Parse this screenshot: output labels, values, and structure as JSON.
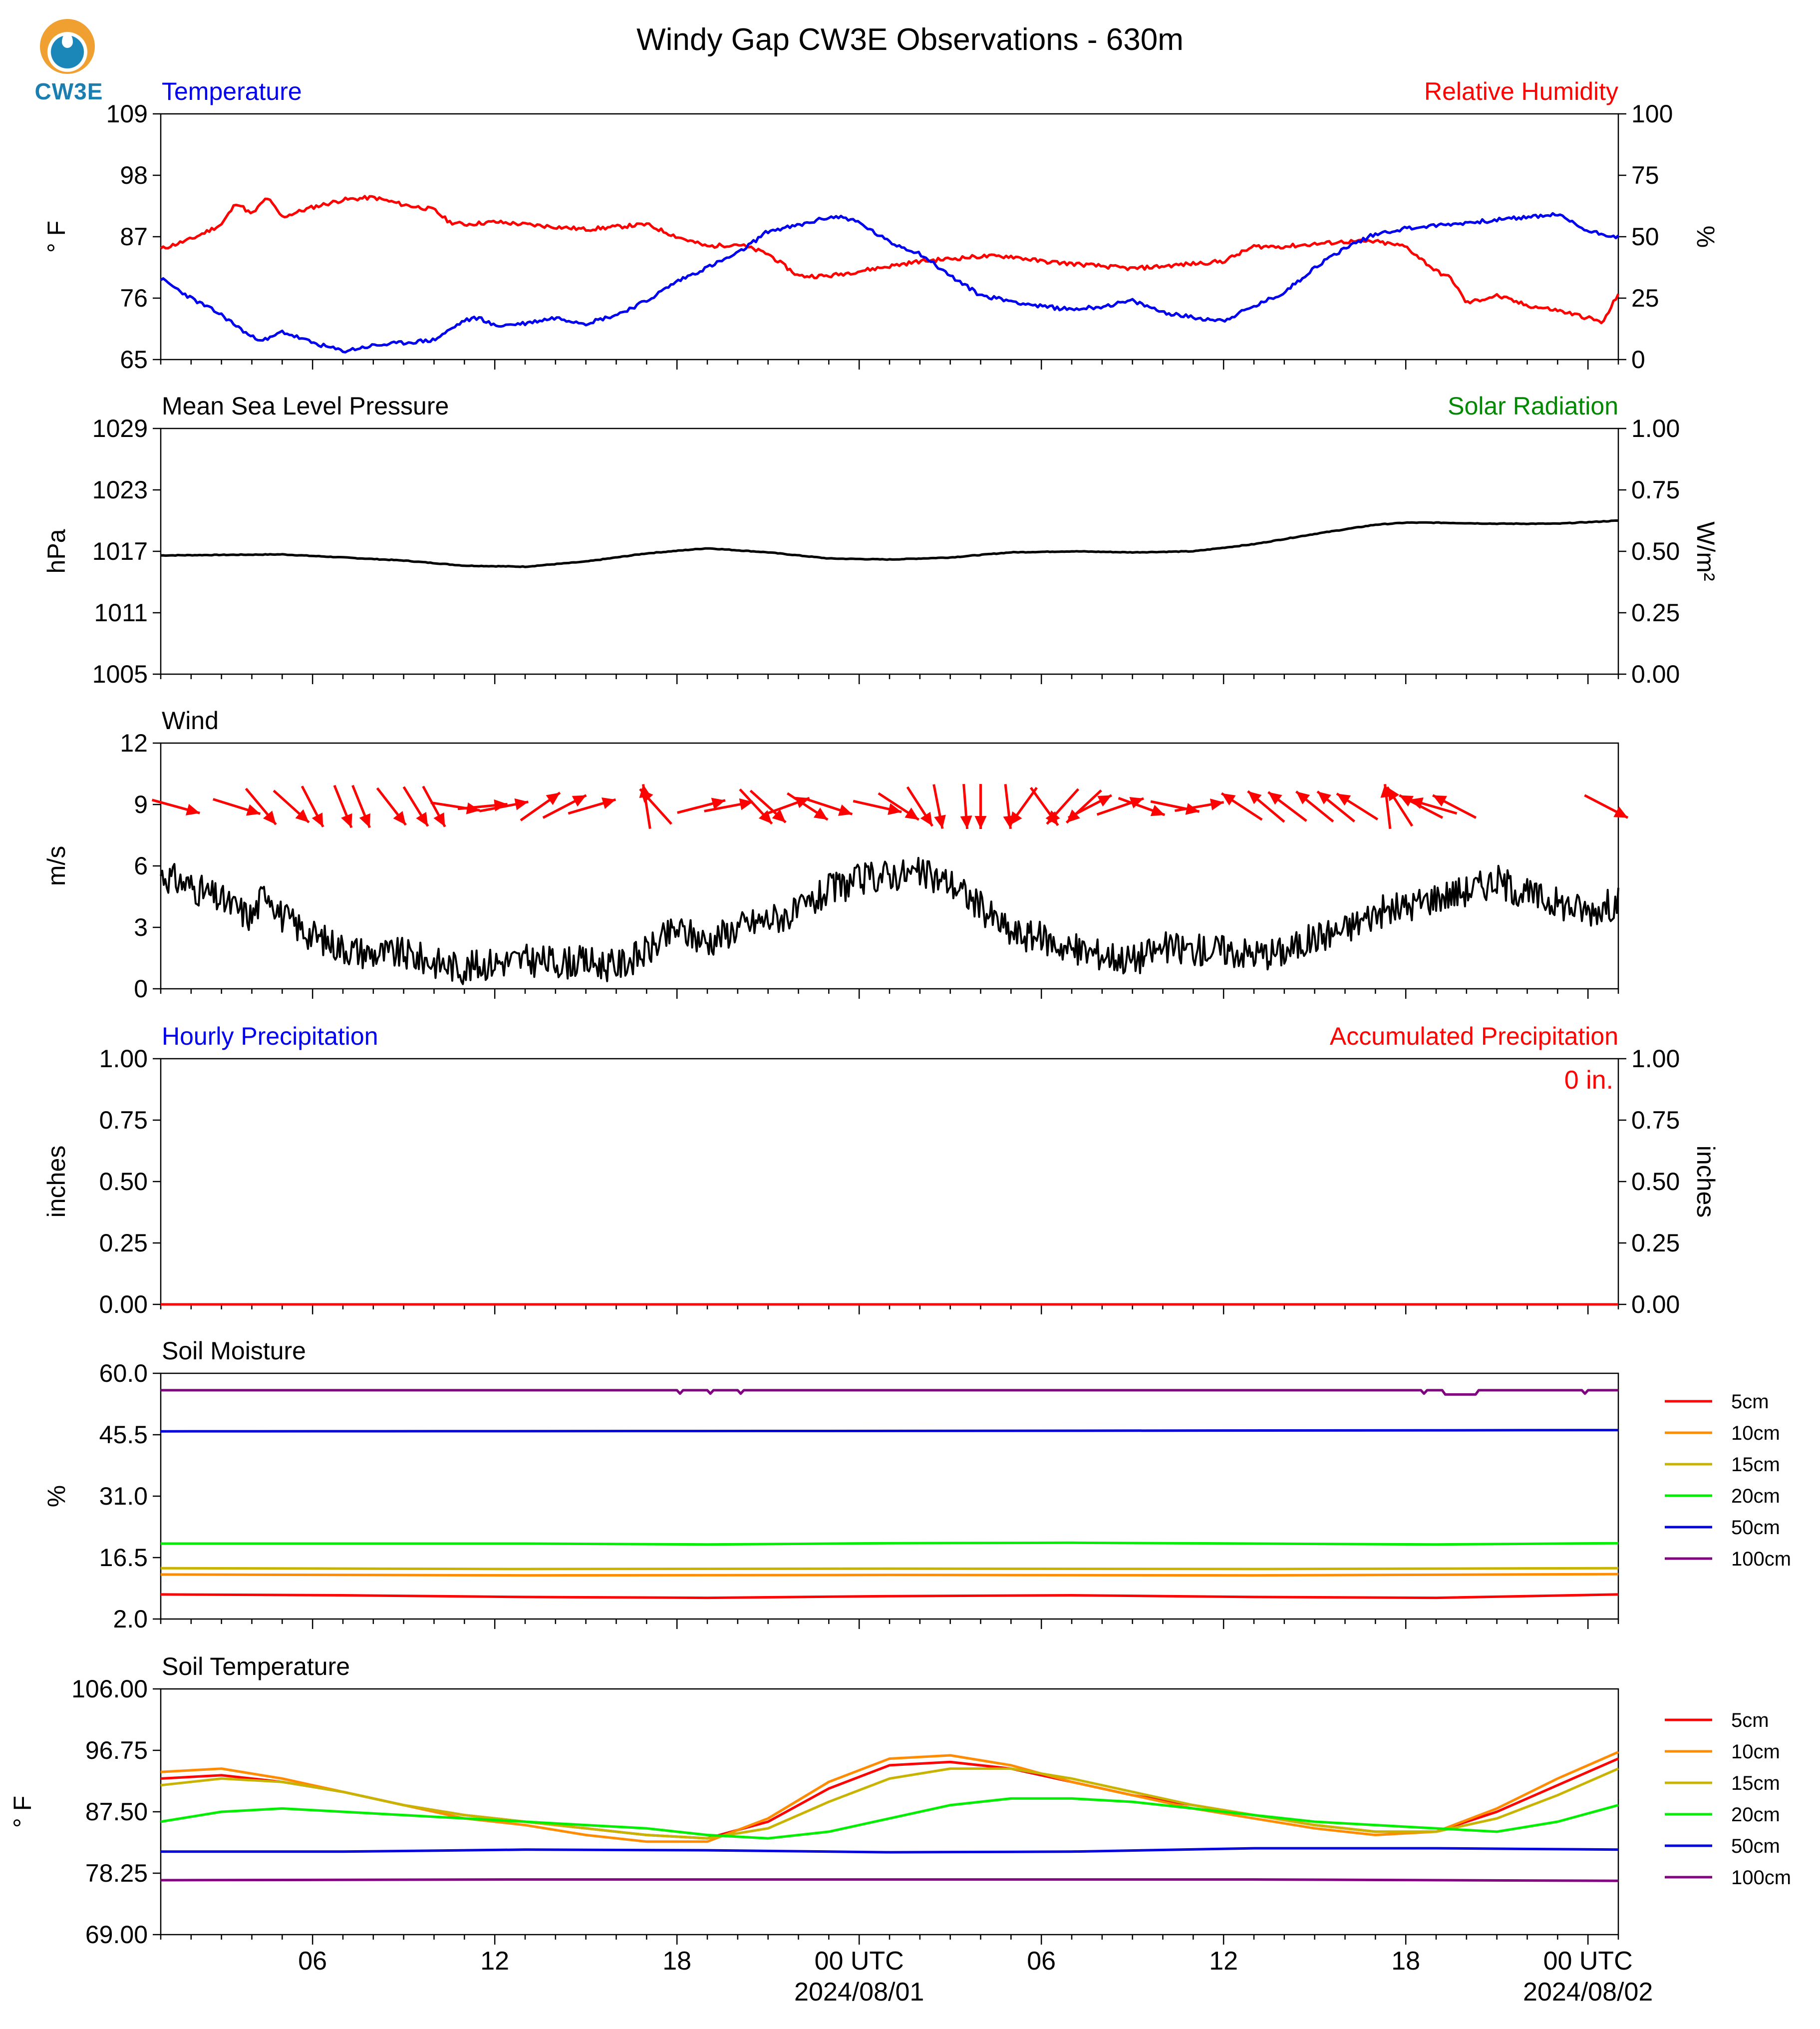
{
  "title": "Windy Gap CW3E Observations - 630m",
  "logo_text": "CW3E",
  "colors": {
    "temperature": "#0000ee",
    "humidity": "#ff0000",
    "pressure": "#000000",
    "solar": "#008800",
    "wind_speed": "#000000",
    "wind_arrow": "#ff0000",
    "hourly_precip": "#0000ee",
    "accum_precip": "#ff0000",
    "depth_5cm": "#ff0000",
    "depth_10cm": "#ff8c00",
    "depth_15cm": "#c8b400",
    "depth_20cm": "#00ee00",
    "depth_50cm": "#0000dd",
    "depth_100cm": "#800080"
  },
  "x_axis": {
    "start": "2024-07-31T01:00Z",
    "end": "2024-08-02T01:00Z",
    "tick_labels": [
      "06",
      "12",
      "18",
      "00 UTC",
      "06",
      "12",
      "18",
      "00 UTC"
    ],
    "date_labels": [
      "2024/08/01",
      "2024/08/02"
    ]
  },
  "panels": {
    "temp_rh": {
      "left_label": "Temperature",
      "right_label": "Relative Humidity",
      "left_unit": "° F",
      "right_unit": "%",
      "left_ticks": [
        "109",
        "98",
        "87",
        "76",
        "65"
      ],
      "right_ticks": [
        "100",
        "75",
        "50",
        "25",
        "0"
      ]
    },
    "pressure": {
      "left_label": "Mean Sea Level Pressure",
      "right_label": "Solar Radiation",
      "left_unit": "hPa",
      "right_unit": "W/m²",
      "left_ticks": [
        "1029",
        "1023",
        "1017",
        "1011",
        "1005"
      ],
      "right_ticks": [
        "1.00",
        "0.75",
        "0.50",
        "0.25",
        "0.00"
      ]
    },
    "wind": {
      "left_label": "Wind",
      "left_unit": "m/s",
      "left_ticks": [
        "12",
        "9",
        "6",
        "3",
        "0"
      ]
    },
    "precip": {
      "left_label": "Hourly Precipitation",
      "right_label": "Accumulated Precipitation",
      "left_unit": "inches",
      "right_unit": "inches",
      "accum_total": "0 in.",
      "left_ticks": [
        "1.00",
        "0.75",
        "0.50",
        "0.25",
        "0.00"
      ],
      "right_ticks": [
        "1.00",
        "0.75",
        "0.50",
        "0.25",
        "0.00"
      ]
    },
    "soil_moisture": {
      "left_label": "Soil Moisture",
      "left_unit": "%",
      "left_ticks": [
        "60.0",
        "45.5",
        "31.0",
        "16.5",
        "2.0"
      ],
      "legend": [
        "5cm",
        "10cm",
        "15cm",
        "20cm",
        "50cm",
        "100cm"
      ]
    },
    "soil_temp": {
      "left_label": "Soil Temperature",
      "left_unit": "° F",
      "left_ticks": [
        "106.00",
        "96.75",
        "87.50",
        "78.25",
        "69.00"
      ],
      "legend": [
        "5cm",
        "10cm",
        "15cm",
        "20cm",
        "50cm",
        "100cm"
      ]
    }
  },
  "chart_data": [
    {
      "type": "line",
      "title": "Temperature / Relative Humidity",
      "x": "hours since 2024-07-31 01 UTC",
      "ylim": [
        65,
        109
      ],
      "y2lim": [
        0,
        100
      ],
      "series": [
        {
          "name": "Temperature",
          "axis": "left",
          "x": [
            0,
            1,
            2,
            3,
            3.5,
            4,
            5,
            6,
            7,
            8,
            9,
            10,
            10.5,
            11,
            12,
            13,
            14,
            15,
            16,
            17,
            18,
            19,
            20,
            21,
            22,
            22.5,
            23,
            24,
            25,
            26,
            27,
            28,
            29,
            30,
            31,
            32,
            33,
            34,
            35,
            36,
            37,
            38,
            39,
            40,
            41,
            42,
            43,
            44,
            45,
            46,
            47,
            48
          ],
          "values": [
            79.5,
            76,
            73,
            69,
            68.5,
            70,
            68,
            66.5,
            67.5,
            68,
            68.5,
            72,
            72.5,
            71,
            71.5,
            72.5,
            71.5,
            73,
            75.5,
            79,
            81.5,
            84,
            88,
            89,
            90.5,
            90.5,
            89.5,
            86,
            84,
            80,
            76.5,
            75.5,
            74.5,
            74,
            74.5,
            75.5,
            73.5,
            72.5,
            72,
            74.5,
            77,
            81.5,
            85,
            87.5,
            88.5,
            89,
            89.5,
            90,
            90.5,
            91,
            88,
            87
          ]
        },
        {
          "name": "Relative Humidity",
          "axis": "right",
          "x": [
            0,
            1,
            2,
            2.5,
            3,
            3.5,
            4,
            5,
            6,
            7,
            8,
            9,
            9.5,
            10,
            11,
            12,
            13,
            14,
            15,
            16,
            17,
            18,
            19,
            20,
            21,
            22,
            23,
            24,
            25,
            26,
            27,
            28,
            29,
            30,
            31,
            32,
            33,
            34,
            35,
            36,
            37,
            38,
            39,
            40,
            41,
            42,
            42.5,
            43,
            44,
            45,
            46,
            47,
            47.5,
            48
          ],
          "values": [
            45,
            49,
            55,
            64,
            59,
            66,
            58,
            62,
            65,
            66,
            63,
            61,
            56,
            55,
            56,
            55,
            54,
            53,
            54,
            55,
            50,
            46,
            47,
            43,
            34,
            34,
            36,
            38,
            40,
            41,
            42,
            42,
            40,
            39,
            38,
            37,
            38,
            39,
            40,
            46,
            46,
            47,
            48,
            48,
            46,
            36,
            33,
            23,
            26,
            22,
            20,
            17,
            15,
            27
          ]
        }
      ]
    },
    {
      "type": "line",
      "title": "Mean Sea Level Pressure",
      "x": "hours since 2024-07-31 01 UTC",
      "ylim": [
        1005,
        1029
      ],
      "series": [
        {
          "name": "Mean Sea Level Pressure",
          "x": [
            0,
            4,
            8,
            10,
            12,
            14,
            16,
            18,
            20,
            22,
            24,
            26,
            28,
            30,
            32,
            34,
            36,
            38,
            40,
            41,
            42,
            44,
            46,
            48
          ],
          "values": [
            1016.6,
            1016.7,
            1016.1,
            1015.6,
            1015.5,
            1016.0,
            1016.8,
            1017.3,
            1016.9,
            1016.3,
            1016.2,
            1016.4,
            1016.9,
            1017.0,
            1016.9,
            1017.0,
            1017.7,
            1018.7,
            1019.6,
            1019.8,
            1019.8,
            1019.7,
            1019.7,
            1020.0
          ]
        },
        {
          "name": "Solar Radiation",
          "axis": "right",
          "x": [],
          "values": []
        }
      ]
    },
    {
      "type": "line",
      "title": "Wind",
      "x": "hours since 2024-07-31 01 UTC",
      "ylim": [
        0,
        12
      ],
      "series": [
        {
          "name": "Wind speed",
          "x": [
            0,
            1,
            2,
            3,
            3.5,
            4,
            5,
            6,
            7,
            8,
            9,
            10,
            11,
            12,
            13,
            14,
            15,
            16,
            17,
            18,
            19,
            20,
            21,
            22,
            23,
            24,
            25,
            26,
            27,
            28,
            29,
            30,
            31,
            32,
            33,
            34,
            35,
            36,
            37,
            38,
            39,
            40,
            41,
            42,
            43,
            44,
            45,
            46,
            47,
            48
          ],
          "values": [
            5.6,
            5.0,
            4.3,
            3.5,
            4.9,
            3.5,
            2.6,
            2.0,
            1.7,
            1.7,
            1.3,
            1.0,
            1.3,
            1.4,
            1.3,
            1.3,
            1.1,
            1.8,
            2.9,
            2.3,
            3.0,
            3.4,
            3.7,
            4.8,
            5.3,
            5.6,
            5.6,
            5.2,
            4.0,
            2.7,
            2.5,
            1.9,
            1.7,
            1.4,
            2.0,
            1.9,
            1.9,
            1.7,
            1.8,
            2.5,
            2.9,
            3.7,
            4.0,
            4.5,
            4.8,
            5.3,
            4.6,
            4.2,
            3.8,
            4.2
          ]
        },
        {
          "name": "Wind direction (arrows point downwind)",
          "x": [
            0.5,
            2.5,
            3.3,
            4.3,
            5.0,
            6.0,
            6.6,
            7.6,
            8.4,
            9.0,
            9.7,
            10.6,
            11.3,
            12.5,
            13.3,
            14.2,
            16.0,
            16.3,
            17.8,
            18.7,
            19.6,
            20.0,
            20.6,
            21.3,
            22.0,
            23.6,
            24.3,
            25.0,
            25.6,
            26.5,
            27.0,
            27.9,
            28.4,
            29.1,
            29.7,
            30.4,
            30.6,
            31.6,
            32.3,
            33.4,
            34.2,
            35.6,
            36.4,
            37.1,
            38.0,
            38.7,
            39.4,
            40.4,
            40.8,
            41.5,
            41.9,
            42.6,
            47.6
          ],
          "to_direction_deg": [
            107,
            109,
            143,
            135,
            155,
            160,
            160,
            145,
            151,
            154,
            100,
            84,
            78,
            52,
            60,
            72,
            352,
            321,
            74,
            78,
            140,
            135,
            68,
            126,
            110,
            104,
            126,
            150,
            170,
            176,
            180,
            174,
            213,
            147,
            219,
            224,
            60,
            69,
            112,
            103,
            79,
            306,
            313,
            310,
            312,
            312,
            305,
            354,
            330,
            300,
            288,
            300,
            120
          ]
        }
      ]
    },
    {
      "type": "line",
      "title": "Precipitation",
      "x": "hours since 2024-07-31 01 UTC",
      "ylim": [
        0,
        1
      ],
      "series": [
        {
          "name": "Hourly Precipitation",
          "x": [
            0,
            48
          ],
          "values": [
            0,
            0
          ]
        },
        {
          "name": "Accumulated Precipitation",
          "axis": "right",
          "x": [
            0,
            48
          ],
          "values": [
            0,
            0
          ]
        }
      ]
    },
    {
      "type": "line",
      "title": "Soil Moisture",
      "x": "hours since 2024-07-31 01 UTC",
      "ylim": [
        2,
        60
      ],
      "series": [
        {
          "name": "5cm",
          "x": [
            0,
            6,
            12,
            18,
            24,
            30,
            36,
            42,
            48
          ],
          "values": [
            7.8,
            7.6,
            7.2,
            7.0,
            7.4,
            7.6,
            7.2,
            7.0,
            7.8
          ]
        },
        {
          "name": "10cm",
          "x": [
            0,
            12,
            24,
            36,
            48
          ],
          "values": [
            12.5,
            12.3,
            12.4,
            12.3,
            12.6
          ]
        },
        {
          "name": "15cm",
          "x": [
            0,
            12,
            24,
            36,
            48
          ],
          "values": [
            14.0,
            13.8,
            13.9,
            13.8,
            14.0
          ]
        },
        {
          "name": "20cm",
          "x": [
            0,
            12,
            18,
            24,
            30,
            36,
            42,
            48
          ],
          "values": [
            19.8,
            19.8,
            19.6,
            19.9,
            20.0,
            19.8,
            19.6,
            19.9
          ]
        },
        {
          "name": "50cm",
          "x": [
            0,
            24,
            48
          ],
          "values": [
            46.3,
            46.4,
            46.6
          ]
        },
        {
          "name": "100cm",
          "x": [
            0,
            17,
            17.1,
            17.2,
            18,
            18.1,
            18.2,
            19,
            19.1,
            19.2,
            41.5,
            41.6,
            41.7,
            42.2,
            42.3,
            43.3,
            43.4,
            46.8,
            46.9,
            47,
            48
          ],
          "values": [
            56.0,
            56.0,
            55.2,
            56.0,
            56.0,
            55.2,
            56.0,
            56.0,
            55.2,
            56.0,
            56.0,
            55.2,
            56.0,
            56.0,
            55.0,
            55.0,
            56.0,
            56.0,
            55.2,
            56.0,
            56.0
          ]
        }
      ]
    },
    {
      "type": "line",
      "title": "Soil Temperature",
      "x": "hours since 2024-07-31 01 UTC",
      "ylim": [
        69,
        106
      ],
      "series": [
        {
          "name": "5cm",
          "x": [
            0,
            2,
            4,
            6,
            8,
            10,
            12,
            14,
            16,
            18,
            20,
            22,
            24,
            26,
            28,
            30,
            32,
            34,
            36,
            38,
            40,
            42,
            44,
            46,
            48
          ],
          "values": [
            92.5,
            93,
            92,
            90.5,
            88.5,
            87,
            86,
            85,
            84,
            83.5,
            86,
            91,
            94.5,
            95,
            94,
            92,
            90,
            88.5,
            87,
            85.5,
            84.5,
            84.5,
            87.5,
            91.5,
            95.5
          ]
        },
        {
          "name": "10cm",
          "x": [
            0,
            2,
            4,
            6,
            8,
            10,
            12,
            14,
            16,
            18,
            20,
            22,
            24,
            26,
            28,
            30,
            32,
            34,
            36,
            38,
            40,
            42,
            44,
            46,
            48
          ],
          "values": [
            93.5,
            94,
            92.5,
            90.5,
            88.5,
            86.5,
            85.5,
            84,
            83,
            83,
            86.5,
            92,
            95.5,
            96,
            94.5,
            92,
            90,
            88,
            86.5,
            85,
            84,
            84.5,
            88,
            92.5,
            96.5
          ]
        },
        {
          "name": "15cm",
          "x": [
            0,
            2,
            4,
            6,
            8,
            10,
            12,
            14,
            16,
            18,
            20,
            22,
            24,
            26,
            28,
            30,
            32,
            34,
            36,
            38,
            40,
            42,
            44,
            46,
            48
          ],
          "values": [
            91.5,
            92.5,
            92,
            90.5,
            88.5,
            87,
            86,
            85,
            84,
            83.5,
            85,
            89,
            92.5,
            94,
            94,
            92.5,
            90.5,
            88.5,
            87,
            85.5,
            84.5,
            84.5,
            86.5,
            90,
            94
          ]
        },
        {
          "name": "20cm",
          "x": [
            0,
            2,
            4,
            6,
            8,
            10,
            12,
            14,
            16,
            18,
            20,
            22,
            24,
            26,
            28,
            30,
            32,
            34,
            36,
            38,
            40,
            42,
            44,
            46,
            48
          ],
          "values": [
            86,
            87.5,
            88,
            87.5,
            87,
            86.5,
            86,
            85.5,
            85,
            84,
            83.5,
            84.5,
            86.5,
            88.5,
            89.5,
            89.5,
            89,
            88,
            87,
            86,
            85.5,
            85,
            84.5,
            86,
            88.5
          ]
        },
        {
          "name": "50cm",
          "x": [
            0,
            6,
            12,
            18,
            24,
            30,
            36,
            42,
            48
          ],
          "values": [
            81.5,
            81.5,
            81.8,
            81.7,
            81.4,
            81.5,
            82,
            82,
            81.8
          ]
        },
        {
          "name": "100cm",
          "x": [
            0,
            12,
            24,
            36,
            48
          ],
          "values": [
            77.2,
            77.3,
            77.3,
            77.3,
            77.1
          ]
        }
      ]
    }
  ]
}
